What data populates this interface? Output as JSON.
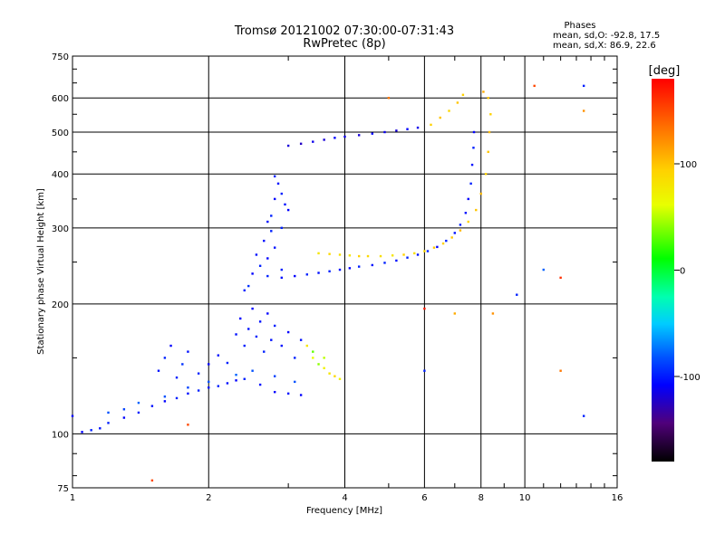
{
  "chart_data": {
    "type": "scatter",
    "title": "Tromsø 20121002 07:30:00-07:31:43",
    "subtitle": "RwPretec (8p)",
    "xlabel": "Frequency [MHz]",
    "ylabel": "Stationary phase Virtual Height [km]",
    "x_scale": "log",
    "y_scale": "log",
    "xlim": [
      1,
      16
    ],
    "ylim": [
      75,
      750
    ],
    "xticks": [
      1,
      2,
      4,
      6,
      8,
      10,
      16
    ],
    "yticks": [
      75,
      100,
      200,
      300,
      400,
      500,
      600,
      750
    ],
    "grid": true,
    "phases": {
      "header": "Phases",
      "line_o": "mean, sd,O:  -92.8, 17.5",
      "line_x": "mean, sd,X:  86.9, 22.6"
    },
    "colorbar": {
      "label": "[deg]",
      "ticks": [
        -100,
        0,
        100
      ],
      "range": [
        -180,
        180
      ]
    },
    "series": [
      {
        "trace": "lower-F-layer-trace",
        "points": [
          [
            1.0,
            110,
            -110
          ],
          [
            1.05,
            101,
            -110
          ],
          [
            1.1,
            102,
            -100
          ],
          [
            1.15,
            103,
            -105
          ],
          [
            1.2,
            106,
            -100
          ],
          [
            1.3,
            109,
            -110
          ],
          [
            1.4,
            112,
            -100
          ],
          [
            1.5,
            116,
            -105
          ],
          [
            1.6,
            119,
            -110
          ],
          [
            1.7,
            121,
            -100
          ],
          [
            1.8,
            124,
            -105
          ],
          [
            1.9,
            126,
            -100
          ],
          [
            2.0,
            128,
            -105
          ],
          [
            2.1,
            129,
            -100
          ],
          [
            2.2,
            131,
            -105
          ],
          [
            2.3,
            133,
            -110
          ],
          [
            2.4,
            134,
            -100
          ],
          [
            2.6,
            130,
            -105
          ],
          [
            2.8,
            125,
            -110
          ],
          [
            3.0,
            124,
            -105
          ],
          [
            3.2,
            123,
            -110
          ],
          [
            1.2,
            112,
            -85
          ],
          [
            1.3,
            114,
            -90
          ],
          [
            1.4,
            118,
            -80
          ],
          [
            1.6,
            122,
            -85
          ],
          [
            1.8,
            128,
            -90
          ],
          [
            2.0,
            132,
            -85
          ],
          [
            2.3,
            137,
            -80
          ],
          [
            2.5,
            140,
            -85
          ],
          [
            2.8,
            136,
            -90
          ],
          [
            3.1,
            132,
            -85
          ]
        ]
      },
      {
        "trace": "E-region-scatter-cluster",
        "points": [
          [
            1.55,
            140,
            -105
          ],
          [
            1.6,
            150,
            -100
          ],
          [
            1.65,
            160,
            -110
          ],
          [
            1.7,
            135,
            -100
          ],
          [
            1.75,
            145,
            -95
          ],
          [
            1.8,
            155,
            -105
          ],
          [
            1.9,
            138,
            -100
          ],
          [
            2.0,
            145,
            -110
          ],
          [
            2.1,
            152,
            -105
          ],
          [
            2.2,
            146,
            -100
          ],
          [
            2.3,
            170,
            -105
          ],
          [
            2.35,
            185,
            -110
          ],
          [
            2.4,
            160,
            -100
          ],
          [
            2.45,
            175,
            -105
          ],
          [
            2.5,
            195,
            -110
          ],
          [
            2.55,
            168,
            -100
          ],
          [
            2.6,
            182,
            -105
          ],
          [
            2.65,
            155,
            -100
          ],
          [
            2.7,
            190,
            -110
          ],
          [
            2.75,
            165,
            -105
          ],
          [
            2.8,
            178,
            -100
          ],
          [
            2.9,
            160,
            -105
          ],
          [
            3.0,
            172,
            -110
          ],
          [
            3.1,
            150,
            -100
          ],
          [
            3.2,
            165,
            -105
          ],
          [
            2.4,
            215,
            -100
          ],
          [
            2.5,
            235,
            -110
          ],
          [
            2.55,
            260,
            -105
          ],
          [
            2.6,
            245,
            -100
          ],
          [
            2.65,
            280,
            -105
          ],
          [
            2.7,
            255,
            -110
          ],
          [
            2.75,
            295,
            -100
          ],
          [
            2.8,
            270,
            -105
          ],
          [
            2.9,
            240,
            -100
          ],
          [
            2.45,
            220,
            -95
          ]
        ]
      },
      {
        "trace": "tall-column-3MHz",
        "points": [
          [
            2.75,
            320,
            -100
          ],
          [
            2.8,
            350,
            -110
          ],
          [
            2.85,
            380,
            -105
          ],
          [
            2.9,
            360,
            -100
          ],
          [
            2.95,
            340,
            -105
          ],
          [
            3.0,
            330,
            -110
          ],
          [
            2.8,
            395,
            -100
          ],
          [
            2.7,
            310,
            -105
          ],
          [
            2.9,
            300,
            -100
          ]
        ]
      },
      {
        "trace": "F2-o-trace-lower",
        "points": [
          [
            2.7,
            232,
            -100
          ],
          [
            2.9,
            230,
            -105
          ],
          [
            3.1,
            232,
            -110
          ],
          [
            3.3,
            234,
            -100
          ],
          [
            3.5,
            236,
            -105
          ],
          [
            3.7,
            238,
            -100
          ],
          [
            3.9,
            240,
            -105
          ],
          [
            4.1,
            242,
            -110
          ],
          [
            4.3,
            244,
            -100
          ],
          [
            4.6,
            246,
            -105
          ],
          [
            4.9,
            249,
            -100
          ],
          [
            5.2,
            252,
            -105
          ],
          [
            5.5,
            256,
            -100
          ],
          [
            5.8,
            260,
            -105
          ],
          [
            6.1,
            265,
            -100
          ],
          [
            6.4,
            271,
            -110
          ],
          [
            6.7,
            280,
            -100
          ],
          [
            7.0,
            292,
            -105
          ],
          [
            7.2,
            305,
            -100
          ],
          [
            7.4,
            325,
            -105
          ],
          [
            7.5,
            350,
            -110
          ],
          [
            7.6,
            380,
            -100
          ],
          [
            7.65,
            420,
            -105
          ],
          [
            7.7,
            460,
            -100
          ],
          [
            7.72,
            500,
            -110
          ]
        ]
      },
      {
        "trace": "F2-x-trace",
        "points": [
          [
            3.5,
            262,
            80
          ],
          [
            3.7,
            261,
            90
          ],
          [
            3.9,
            260,
            85
          ],
          [
            4.1,
            259,
            80
          ],
          [
            4.3,
            258,
            95
          ],
          [
            4.5,
            258,
            90
          ],
          [
            4.8,
            258,
            85
          ],
          [
            5.1,
            259,
            80
          ],
          [
            5.4,
            260,
            95
          ],
          [
            5.7,
            262,
            85
          ],
          [
            6.0,
            265,
            90
          ],
          [
            6.3,
            270,
            100
          ],
          [
            6.6,
            276,
            95
          ],
          [
            6.9,
            285,
            100
          ],
          [
            7.2,
            296,
            105
          ],
          [
            7.5,
            310,
            95
          ],
          [
            7.8,
            330,
            100
          ],
          [
            8.0,
            360,
            105
          ],
          [
            8.2,
            400,
            95
          ],
          [
            8.3,
            450,
            100
          ],
          [
            8.35,
            500,
            105
          ],
          [
            8.4,
            550,
            95
          ],
          [
            8.3,
            600,
            100
          ],
          [
            8.1,
            620,
            110
          ]
        ]
      },
      {
        "trace": "upper-echo-trace",
        "points": [
          [
            3.0,
            465,
            -120
          ],
          [
            3.2,
            470,
            -125
          ],
          [
            3.4,
            475,
            -115
          ],
          [
            3.6,
            480,
            -120
          ],
          [
            3.8,
            485,
            -110
          ],
          [
            4.0,
            488,
            -115
          ],
          [
            4.3,
            492,
            -120
          ],
          [
            4.6,
            496,
            -110
          ],
          [
            4.9,
            500,
            -115
          ],
          [
            5.2,
            504,
            -120
          ],
          [
            5.5,
            508,
            -110
          ],
          [
            5.8,
            512,
            -115
          ],
          [
            6.2,
            520,
            95
          ],
          [
            6.5,
            540,
            100
          ],
          [
            6.8,
            560,
            90
          ],
          [
            7.1,
            585,
            100
          ],
          [
            7.3,
            610,
            95
          ]
        ]
      },
      {
        "trace": "green-E-trace",
        "points": [
          [
            3.3,
            160,
            80
          ],
          [
            3.4,
            150,
            60
          ],
          [
            3.5,
            145,
            40
          ],
          [
            3.6,
            142,
            70
          ],
          [
            3.7,
            138,
            80
          ],
          [
            3.8,
            136,
            90
          ],
          [
            3.9,
            134,
            70
          ],
          [
            3.6,
            150,
            50
          ],
          [
            3.4,
            155,
            30
          ]
        ]
      },
      {
        "trace": "sporadic",
        "points": [
          [
            10.5,
            640,
            150
          ],
          [
            12.0,
            230,
            160
          ],
          [
            12.0,
            140,
            130
          ],
          [
            13.5,
            640,
            -100
          ],
          [
            13.5,
            110,
            -100
          ],
          [
            13.5,
            560,
            120
          ],
          [
            11.0,
            240,
            -80
          ],
          [
            9.6,
            210,
            -100
          ],
          [
            1.5,
            78,
            150
          ],
          [
            1.8,
            105,
            150
          ],
          [
            5.0,
            600,
            130
          ],
          [
            6.0,
            195,
            170
          ],
          [
            7.0,
            190,
            110
          ],
          [
            8.5,
            190,
            120
          ],
          [
            6.0,
            140,
            -100
          ]
        ]
      }
    ]
  }
}
